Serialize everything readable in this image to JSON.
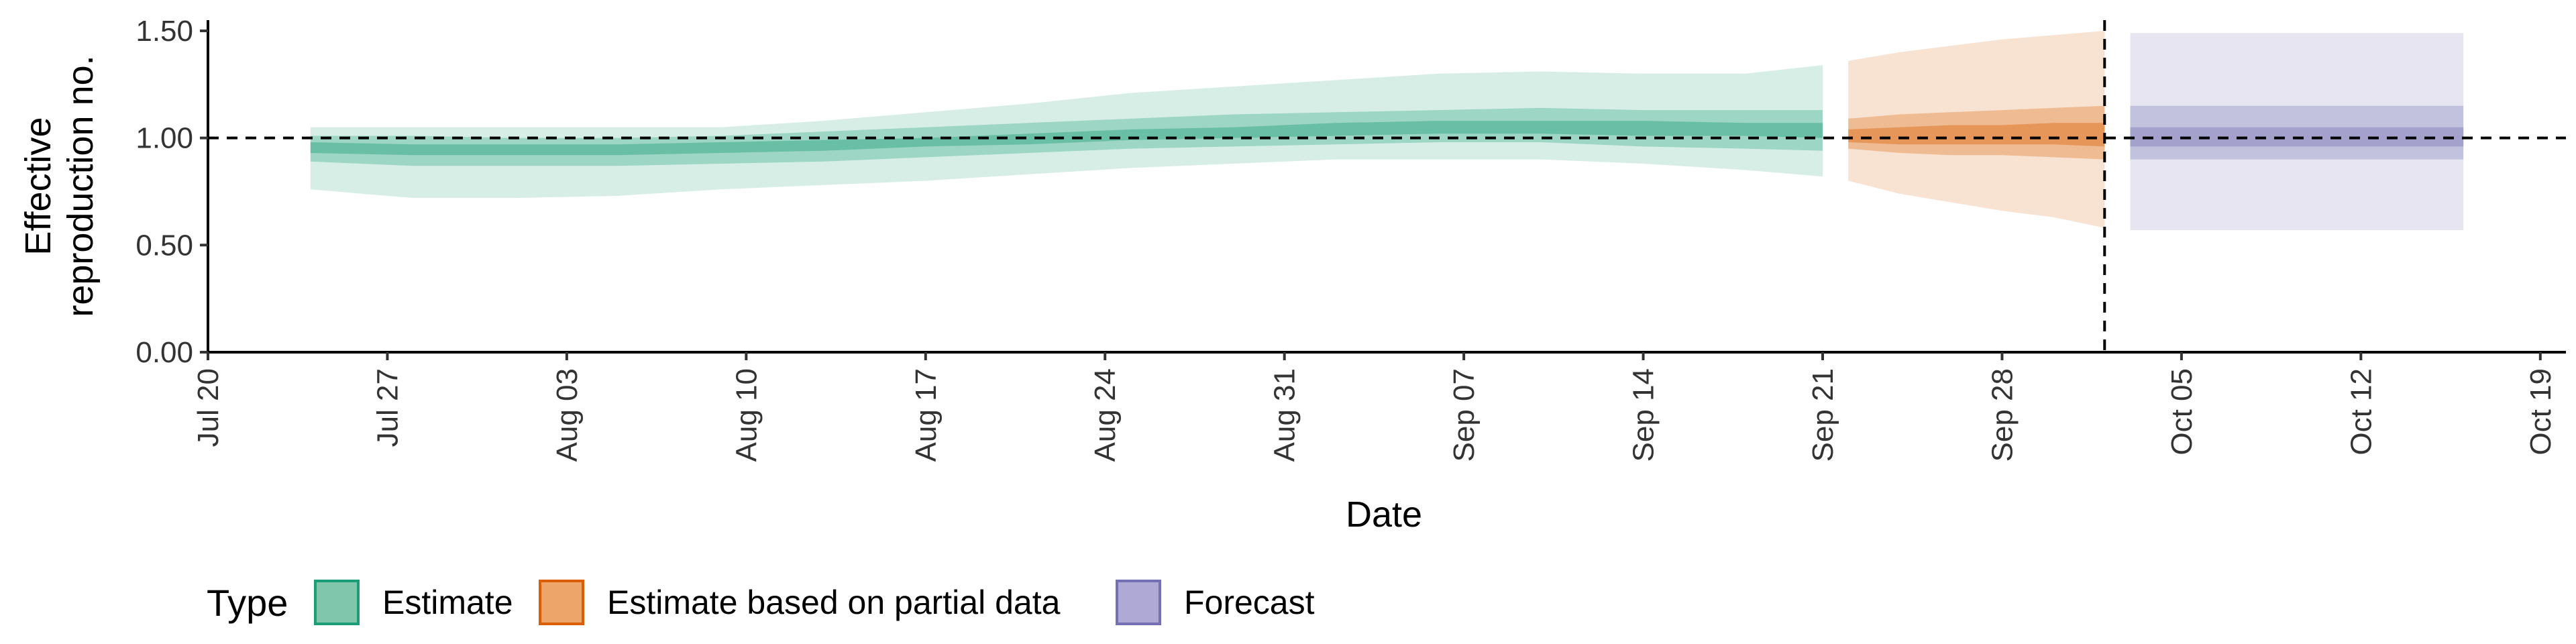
{
  "chart_data": {
    "type": "area",
    "title": "",
    "xlabel": "Date",
    "ylabel_lines": [
      "Effective",
      "reproduction no."
    ],
    "x_tick_labels": [
      "Jul 20",
      "Jul 27",
      "Aug 03",
      "Aug 10",
      "Aug 17",
      "Aug 24",
      "Aug 31",
      "Sep 07",
      "Sep 14",
      "Sep 21",
      "Sep 28",
      "Oct 05",
      "Oct 12",
      "Oct 19"
    ],
    "x_tick_dates": [
      "2020-07-20",
      "2020-07-27",
      "2020-08-03",
      "2020-08-10",
      "2020-08-17",
      "2020-08-24",
      "2020-08-31",
      "2020-09-07",
      "2020-09-14",
      "2020-09-21",
      "2020-09-28",
      "2020-10-05",
      "2020-10-12",
      "2020-10-19"
    ],
    "y_tick_labels": [
      "0.00",
      "0.50",
      "1.00",
      "1.50"
    ],
    "y_ticks": [
      0,
      0.5,
      1.0,
      1.5
    ],
    "xlim": [
      "2020-07-20",
      "2020-10-20"
    ],
    "ylim": [
      0,
      1.55
    ],
    "reference_line_y": 1.0,
    "reference_line_date": "2020-10-02",
    "grid": false,
    "legend": {
      "title": "Type",
      "position": "bottom",
      "entries": [
        {
          "label": "Estimate",
          "fill": "#7fc6ad",
          "stroke": "#1b9e77"
        },
        {
          "label": "Estimate based on partial data",
          "fill": "#eea56a",
          "stroke": "#d95f02"
        },
        {
          "label": "Forecast",
          "fill": "#aeaad5",
          "stroke": "#7570b3"
        }
      ]
    },
    "series": [
      {
        "name": "Estimate",
        "color": "#1b9e77",
        "x": [
          "2020-07-24",
          "2020-07-28",
          "2020-08-01",
          "2020-08-05",
          "2020-08-09",
          "2020-08-13",
          "2020-08-17",
          "2020-08-21",
          "2020-08-25",
          "2020-08-29",
          "2020-09-02",
          "2020-09-06",
          "2020-09-10",
          "2020-09-14",
          "2020-09-18",
          "2020-09-21"
        ],
        "lower90": [
          0.76,
          0.72,
          0.72,
          0.73,
          0.76,
          0.78,
          0.8,
          0.83,
          0.86,
          0.88,
          0.9,
          0.9,
          0.9,
          0.88,
          0.85,
          0.82
        ],
        "upper90": [
          1.05,
          1.05,
          1.05,
          1.05,
          1.05,
          1.08,
          1.12,
          1.16,
          1.21,
          1.24,
          1.27,
          1.3,
          1.31,
          1.3,
          1.3,
          1.34
        ],
        "lower50": [
          0.89,
          0.87,
          0.87,
          0.87,
          0.88,
          0.89,
          0.91,
          0.93,
          0.95,
          0.96,
          0.97,
          0.98,
          0.98,
          0.96,
          0.95,
          0.94
        ],
        "upper50": [
          1.01,
          1.01,
          1.0,
          1.0,
          1.01,
          1.03,
          1.05,
          1.07,
          1.09,
          1.11,
          1.12,
          1.13,
          1.14,
          1.13,
          1.13,
          1.13
        ],
        "lower20": [
          0.93,
          0.92,
          0.92,
          0.92,
          0.93,
          0.94,
          0.96,
          0.97,
          0.99,
          1.0,
          1.01,
          1.02,
          1.02,
          1.01,
          1.01,
          1.0
        ],
        "upper20": [
          0.98,
          0.97,
          0.97,
          0.97,
          0.98,
          0.99,
          1.0,
          1.02,
          1.04,
          1.05,
          1.07,
          1.08,
          1.08,
          1.08,
          1.07,
          1.07
        ]
      },
      {
        "name": "Estimate based on partial data",
        "color": "#d95f02",
        "x": [
          "2020-09-22",
          "2020-09-24",
          "2020-09-26",
          "2020-09-28",
          "2020-09-30",
          "2020-10-02"
        ],
        "lower90": [
          0.8,
          0.74,
          0.7,
          0.66,
          0.63,
          0.58
        ],
        "upper90": [
          1.36,
          1.4,
          1.43,
          1.46,
          1.48,
          1.5
        ],
        "lower50": [
          0.95,
          0.93,
          0.92,
          0.92,
          0.91,
          0.9
        ],
        "upper50": [
          1.09,
          1.11,
          1.12,
          1.13,
          1.14,
          1.15
        ],
        "lower20": [
          0.98,
          0.97,
          0.97,
          0.97,
          0.97,
          0.96
        ],
        "upper20": [
          1.04,
          1.05,
          1.06,
          1.06,
          1.07,
          1.07
        ]
      },
      {
        "name": "Forecast",
        "color": "#7570b3",
        "x": [
          "2020-10-03",
          "2020-10-16"
        ],
        "lower90": [
          0.57,
          0.57
        ],
        "upper90": [
          1.49,
          1.49
        ],
        "lower50": [
          0.9,
          0.9
        ],
        "upper50": [
          1.15,
          1.15
        ],
        "lower20": [
          0.96,
          0.96
        ],
        "upper20": [
          1.05,
          1.05
        ]
      }
    ]
  }
}
